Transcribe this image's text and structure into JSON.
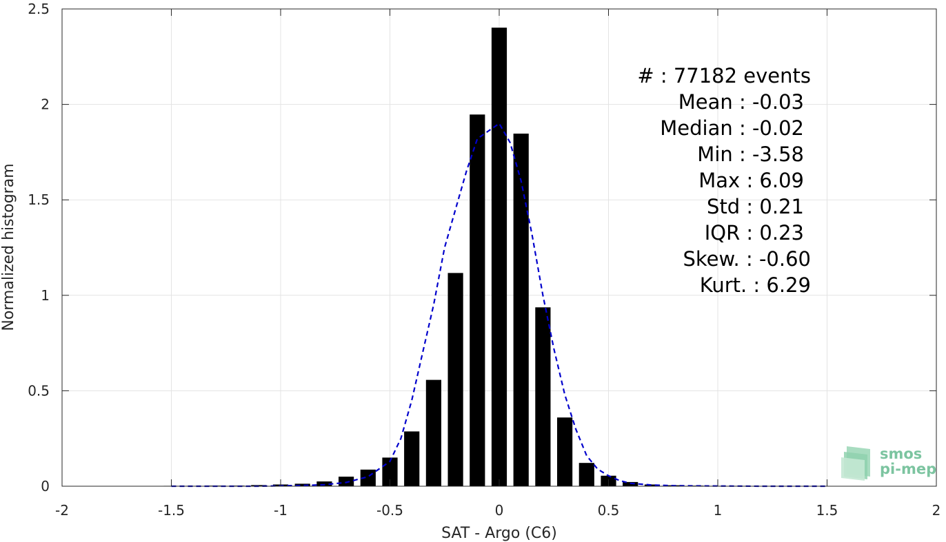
{
  "chart_data": {
    "type": "bar",
    "xlabel": "SAT - Argo (C6)",
    "ylabel": "Normalized histogram",
    "xlim": [
      -2,
      2
    ],
    "ylim": [
      0,
      2.5
    ],
    "x_ticks": [
      -2,
      -1.5,
      -1,
      -0.5,
      0,
      0.5,
      1,
      1.5,
      2
    ],
    "x_tick_labels": [
      "-2",
      "-1.5",
      "-1",
      "-0.5",
      "0",
      "0.5",
      "1",
      "1.5",
      "2"
    ],
    "y_ticks": [
      0,
      0.5,
      1,
      1.5,
      2,
      2.5
    ],
    "y_tick_labels": [
      "0",
      "0.5",
      "1",
      "1.5",
      "2",
      "2.5"
    ],
    "grid": true,
    "bar_width": 0.07,
    "series": [
      {
        "type": "bar",
        "color": "#000000",
        "x": [
          -1.5,
          -1.4,
          -1.3,
          -1.2,
          -1.1,
          -1.0,
          -0.9,
          -0.8,
          -0.7,
          -0.6,
          -0.5,
          -0.4,
          -0.3,
          -0.2,
          -0.1,
          0.0,
          0.1,
          0.2,
          0.3,
          0.4,
          0.5,
          0.6,
          0.7,
          0.8,
          0.9,
          1.0,
          1.1,
          1.2,
          1.3,
          1.4,
          1.5
        ],
        "values": [
          0.002,
          0.002,
          0.003,
          0.003,
          0.006,
          0.009,
          0.013,
          0.025,
          0.05,
          0.087,
          0.15,
          0.287,
          0.557,
          1.117,
          1.947,
          2.402,
          1.847,
          0.937,
          0.36,
          0.122,
          0.055,
          0.022,
          0.009,
          0.005,
          0.003,
          0.002,
          0.002,
          0.001,
          0.001,
          0.001,
          0.001
        ]
      },
      {
        "type": "line",
        "style": "dashed",
        "color": "#0000cc",
        "x": [
          -1.5,
          -1.3,
          -1.1,
          -1.0,
          -0.9,
          -0.8,
          -0.7,
          -0.6,
          -0.5,
          -0.45,
          -0.4,
          -0.35,
          -0.3,
          -0.25,
          -0.2,
          -0.15,
          -0.1,
          -0.05,
          0.0,
          0.05,
          0.1,
          0.15,
          0.2,
          0.25,
          0.3,
          0.35,
          0.4,
          0.45,
          0.5,
          0.55,
          0.6,
          0.7,
          0.8,
          1.0,
          1.2,
          1.5
        ],
        "values": [
          0.0,
          0.0,
          0.0,
          0.002,
          0.004,
          0.008,
          0.02,
          0.05,
          0.13,
          0.25,
          0.45,
          0.7,
          0.95,
          1.25,
          1.45,
          1.65,
          1.82,
          1.86,
          1.9,
          1.8,
          1.6,
          1.32,
          1.0,
          0.72,
          0.48,
          0.3,
          0.16,
          0.09,
          0.055,
          0.03,
          0.015,
          0.006,
          0.003,
          0.001,
          0.0,
          0.0
        ]
      }
    ]
  },
  "stats": {
    "lines": [
      "#  : 77182 events",
      "Mean : -0.03",
      "Median : -0.02",
      "Min : -3.58",
      "Max : 6.09",
      "Std : 0.21",
      "IQR : 0.23",
      "Skew. : -0.60",
      "Kurt. : 6.29"
    ]
  },
  "logo": {
    "line1": "smos",
    "line2": "pi-mep"
  }
}
